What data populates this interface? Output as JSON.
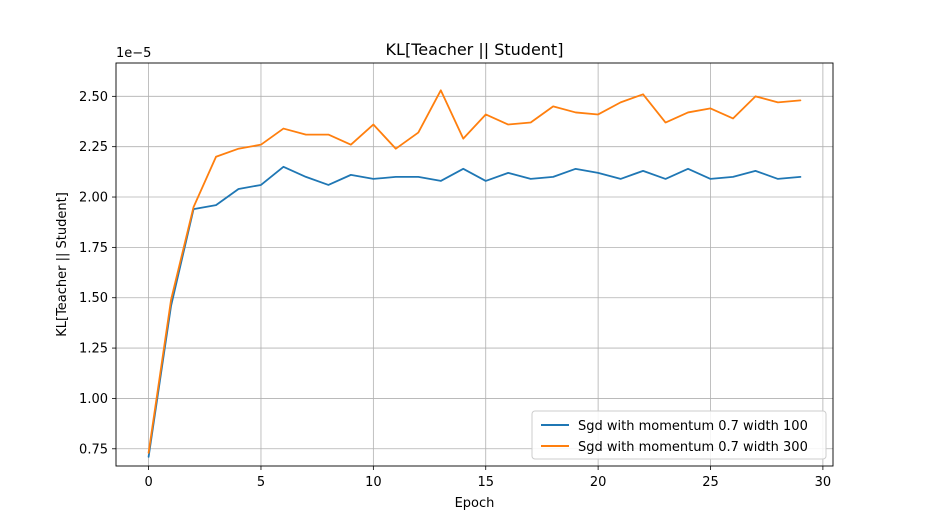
{
  "chart_data": {
    "type": "line",
    "title": "KL[Teacher || Student]",
    "xlabel": "Epoch",
    "ylabel": "KL[Teacher || Student]",
    "y_scale_label": "1e−5",
    "xlim": [
      -1.45,
      30.45
    ],
    "ylim": [
      0.6645,
      2.6655
    ],
    "x_ticks": [
      0,
      5,
      10,
      15,
      20,
      25,
      30
    ],
    "y_ticks": [
      0.75,
      1.0,
      1.25,
      1.5,
      1.75,
      2.0,
      2.25,
      2.5
    ],
    "x_tick_labels": [
      "0",
      "5",
      "10",
      "15",
      "20",
      "25",
      "30"
    ],
    "y_tick_labels": [
      "0.75",
      "1.00",
      "1.25",
      "1.50",
      "1.75",
      "2.00",
      "2.25",
      "2.50"
    ],
    "grid": true,
    "legend_position": "lower right",
    "x": [
      0,
      1,
      2,
      3,
      4,
      5,
      6,
      7,
      8,
      9,
      10,
      11,
      12,
      13,
      14,
      15,
      16,
      17,
      18,
      19,
      20,
      21,
      22,
      23,
      24,
      25,
      26,
      27,
      28,
      29
    ],
    "series": [
      {
        "name": "Sgd with momentum 0.7 width 100",
        "color": "#1f77b4",
        "values": [
          0.71,
          1.46,
          1.94,
          1.96,
          2.04,
          2.06,
          2.15,
          2.1,
          2.06,
          2.11,
          2.09,
          2.1,
          2.1,
          2.08,
          2.14,
          2.08,
          2.12,
          2.09,
          2.1,
          2.14,
          2.12,
          2.09,
          2.13,
          2.09,
          2.14,
          2.09,
          2.1,
          2.13,
          2.09,
          2.1
        ]
      },
      {
        "name": "Sgd with momentum 0.7 width 300",
        "color": "#ff7f0e",
        "values": [
          0.73,
          1.49,
          1.95,
          2.2,
          2.24,
          2.26,
          2.34,
          2.31,
          2.31,
          2.26,
          2.36,
          2.24,
          2.32,
          2.53,
          2.29,
          2.41,
          2.36,
          2.37,
          2.45,
          2.42,
          2.41,
          2.47,
          2.51,
          2.37,
          2.42,
          2.44,
          2.39,
          2.5,
          2.47,
          2.48
        ]
      }
    ]
  }
}
